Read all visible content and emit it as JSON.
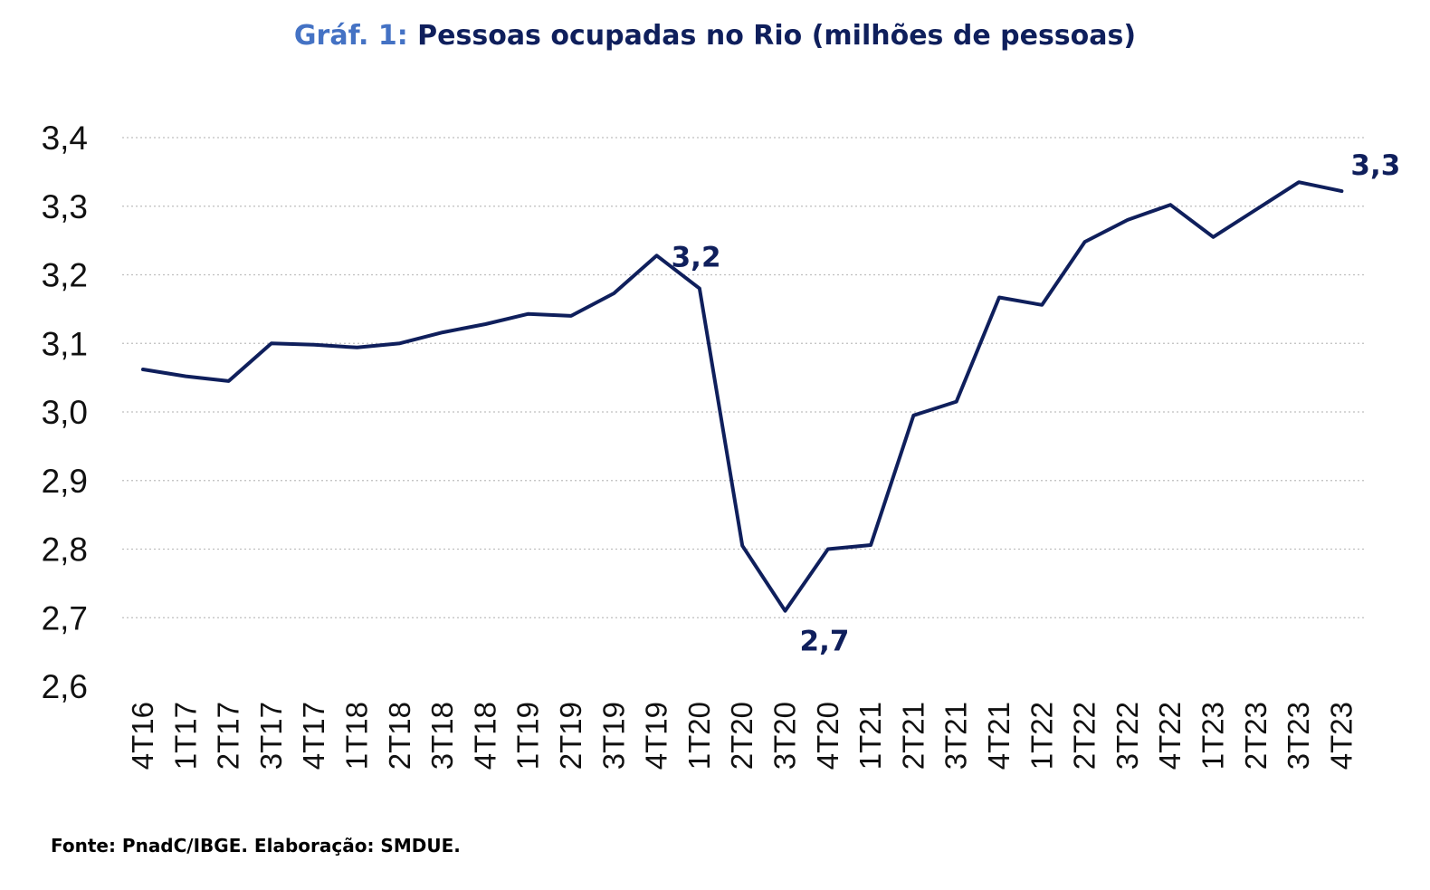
{
  "title": {
    "prefix": "Gráf. 1:",
    "text": "Pessoas ocupadas no Rio (milhões de pessoas)"
  },
  "source": "Fonte: PnadC/IBGE.  Elaboração: SMDUE.",
  "colors": {
    "line": "#0f1f5c",
    "title_prefix": "#4472c4",
    "grid": "#bfbfbf"
  },
  "chart_data": {
    "type": "line",
    "title": "Gráf. 1: Pessoas ocupadas no Rio (milhões de pessoas)",
    "xlabel": "",
    "ylabel": "",
    "ylim": [
      2.6,
      3.4
    ],
    "yticks": [
      "2,6",
      "2,7",
      "2,8",
      "2,9",
      "3,0",
      "3,1",
      "3,2",
      "3,3",
      "3,4"
    ],
    "ytick_values": [
      2.6,
      2.7,
      2.8,
      2.9,
      3.0,
      3.1,
      3.2,
      3.3,
      3.4
    ],
    "grid": "horizontal dotted",
    "legend": "none",
    "categories": [
      "4T16",
      "1T17",
      "2T17",
      "3T17",
      "4T17",
      "1T18",
      "2T18",
      "3T18",
      "4T18",
      "1T19",
      "2T19",
      "3T19",
      "4T19",
      "1T20",
      "2T20",
      "3T20",
      "4T20",
      "1T21",
      "2T21",
      "3T21",
      "4T21",
      "1T22",
      "2T22",
      "3T22",
      "4T22",
      "1T23",
      "2T23",
      "3T23",
      "4T23"
    ],
    "series": [
      {
        "values": [
          3.062,
          3.052,
          3.045,
          3.1,
          3.098,
          3.094,
          3.1,
          3.116,
          3.128,
          3.143,
          3.14,
          3.173,
          3.228,
          3.18,
          2.805,
          2.71,
          2.8,
          2.806,
          2.995,
          3.015,
          3.167,
          3.156,
          3.248,
          3.28,
          3.302,
          3.255,
          3.295,
          3.335,
          3.322
        ]
      }
    ],
    "data_labels": [
      {
        "index": 12,
        "text": "3,2"
      },
      {
        "index": 15,
        "text": "2,7"
      },
      {
        "index": 28,
        "text": "3,3"
      }
    ]
  }
}
